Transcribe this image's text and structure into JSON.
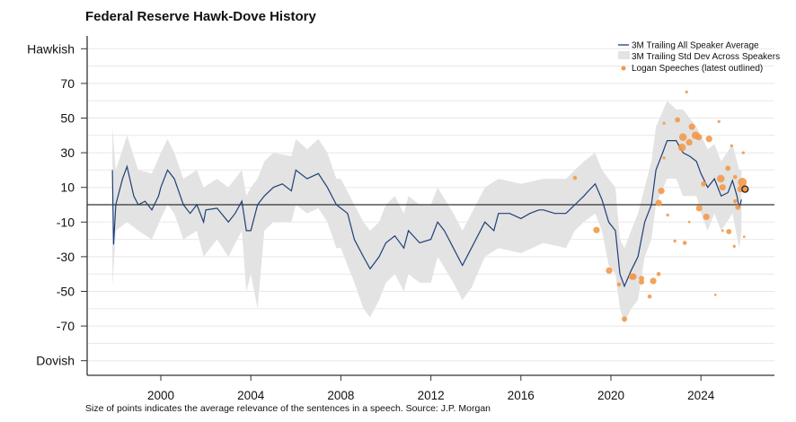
{
  "chart_data": {
    "type": "line",
    "title": "Federal Reserve Hawk-Dove History",
    "footnote": "Size of points indicates the average relevance of the sentences in a speech. Source: J.P. Morgan",
    "xlim": [
      1996.7,
      2027.3
    ],
    "ylim": [
      -95,
      100
    ],
    "x_ticks": [
      2000,
      2004,
      2008,
      2012,
      2016,
      2020,
      2024
    ],
    "y_ticks": [
      {
        "value": 90,
        "label": "Hawkish"
      },
      {
        "value": 70,
        "label": "70"
      },
      {
        "value": 50,
        "label": "50"
      },
      {
        "value": 30,
        "label": "30"
      },
      {
        "value": 10,
        "label": "10"
      },
      {
        "value": -10,
        "label": "-10"
      },
      {
        "value": -30,
        "label": "-30"
      },
      {
        "value": -50,
        "label": "-50"
      },
      {
        "value": -70,
        "label": "-70"
      },
      {
        "value": -90,
        "label": "Dovish"
      }
    ],
    "grid": true,
    "reference_line": 0,
    "legend_position": "top-right",
    "colors": {
      "average": "#1f3f77",
      "band": "#e3e3e3",
      "logan": "#f2994a",
      "zero_line": "#333333",
      "grid": "#e8e8e8"
    },
    "legend": [
      {
        "label": "3M Trailing All Speaker Average",
        "kind": "line"
      },
      {
        "label": "3M Trailing Std Dev Across Speakers",
        "kind": "band"
      },
      {
        "label": "Logan Speeches (latest outlined)",
        "kind": "dot"
      }
    ],
    "series": [
      {
        "name": "3M Trailing All Speaker Average",
        "points": [
          [
            1997.85,
            20
          ],
          [
            1997.9,
            -23
          ],
          [
            1998.0,
            0
          ],
          [
            1998.3,
            15
          ],
          [
            1998.5,
            22
          ],
          [
            1998.8,
            5
          ],
          [
            1999.0,
            0
          ],
          [
            1999.3,
            2
          ],
          [
            1999.6,
            -3
          ],
          [
            1999.9,
            5
          ],
          [
            2000.0,
            10
          ],
          [
            2000.3,
            20
          ],
          [
            2000.6,
            15
          ],
          [
            2001.0,
            0
          ],
          [
            2001.3,
            -5
          ],
          [
            2001.6,
            0
          ],
          [
            2001.9,
            -10
          ],
          [
            2002.0,
            -3
          ],
          [
            2002.5,
            -2
          ],
          [
            2003.0,
            -10
          ],
          [
            2003.3,
            -5
          ],
          [
            2003.6,
            2
          ],
          [
            2003.8,
            -15
          ],
          [
            2004.0,
            -15
          ],
          [
            2004.3,
            0
          ],
          [
            2004.6,
            5
          ],
          [
            2005.0,
            10
          ],
          [
            2005.4,
            12
          ],
          [
            2005.8,
            8
          ],
          [
            2006.0,
            20
          ],
          [
            2006.5,
            15
          ],
          [
            2007.0,
            18
          ],
          [
            2007.4,
            10
          ],
          [
            2007.8,
            0
          ],
          [
            2008.0,
            -2
          ],
          [
            2008.3,
            -5
          ],
          [
            2008.6,
            -20
          ],
          [
            2009.0,
            -30
          ],
          [
            2009.3,
            -37
          ],
          [
            2009.7,
            -30
          ],
          [
            2010.0,
            -22
          ],
          [
            2010.4,
            -18
          ],
          [
            2010.8,
            -25
          ],
          [
            2011.0,
            -15
          ],
          [
            2011.5,
            -22
          ],
          [
            2012.0,
            -20
          ],
          [
            2012.3,
            -10
          ],
          [
            2012.6,
            -15
          ],
          [
            2013.0,
            -25
          ],
          [
            2013.4,
            -35
          ],
          [
            2013.8,
            -25
          ],
          [
            2014.0,
            -20
          ],
          [
            2014.4,
            -10
          ],
          [
            2014.8,
            -15
          ],
          [
            2015.0,
            -5
          ],
          [
            2015.5,
            -5
          ],
          [
            2016.0,
            -8
          ],
          [
            2016.4,
            -5
          ],
          [
            2016.8,
            -3
          ],
          [
            2017.0,
            -3
          ],
          [
            2017.5,
            -5
          ],
          [
            2018.0,
            -5
          ],
          [
            2018.4,
            0
          ],
          [
            2018.8,
            5
          ],
          [
            2019.0,
            8
          ],
          [
            2019.3,
            12
          ],
          [
            2019.6,
            3
          ],
          [
            2019.9,
            -10
          ],
          [
            2020.2,
            -15
          ],
          [
            2020.4,
            -40
          ],
          [
            2020.6,
            -47
          ],
          [
            2020.9,
            -38
          ],
          [
            2021.2,
            -30
          ],
          [
            2021.5,
            -10
          ],
          [
            2021.8,
            0
          ],
          [
            2022.0,
            20
          ],
          [
            2022.3,
            30
          ],
          [
            2022.5,
            37
          ],
          [
            2022.9,
            37
          ],
          [
            2023.2,
            30
          ],
          [
            2023.5,
            28
          ],
          [
            2023.8,
            25
          ],
          [
            2024.0,
            18
          ],
          [
            2024.3,
            10
          ],
          [
            2024.6,
            15
          ],
          [
            2024.9,
            5
          ],
          [
            2025.2,
            7
          ],
          [
            2025.4,
            14
          ],
          [
            2025.6,
            5
          ],
          [
            2025.7,
            -2
          ],
          [
            2025.8,
            3
          ]
        ]
      },
      {
        "name": "3M Trailing Std Dev Across Speakers",
        "band": [
          [
            1997.85,
            -47,
            45
          ],
          [
            1998.0,
            -15,
            20
          ],
          [
            1998.5,
            -10,
            40
          ],
          [
            1999.0,
            -15,
            20
          ],
          [
            1999.6,
            -20,
            18
          ],
          [
            2000.0,
            -8,
            30
          ],
          [
            2000.3,
            0,
            38
          ],
          [
            2000.6,
            -5,
            30
          ],
          [
            2001.0,
            -20,
            15
          ],
          [
            2001.6,
            -15,
            20
          ],
          [
            2001.9,
            -30,
            10
          ],
          [
            2002.5,
            -20,
            15
          ],
          [
            2003.0,
            -30,
            10
          ],
          [
            2003.6,
            -15,
            20
          ],
          [
            2003.8,
            -50,
            5
          ],
          [
            2004.0,
            -40,
            10
          ],
          [
            2004.3,
            -60,
            15
          ],
          [
            2004.6,
            -15,
            25
          ],
          [
            2005.0,
            -10,
            30
          ],
          [
            2005.8,
            -10,
            28
          ],
          [
            2006.0,
            0,
            38
          ],
          [
            2006.5,
            -5,
            32
          ],
          [
            2007.0,
            -2,
            38
          ],
          [
            2007.4,
            -10,
            30
          ],
          [
            2007.8,
            -25,
            15
          ],
          [
            2008.0,
            -25,
            15
          ],
          [
            2008.6,
            -45,
            0
          ],
          [
            2009.0,
            -60,
            -10
          ],
          [
            2009.3,
            -65,
            -15
          ],
          [
            2009.7,
            -55,
            -10
          ],
          [
            2010.0,
            -45,
            0
          ],
          [
            2010.4,
            -40,
            5
          ],
          [
            2010.8,
            -50,
            -5
          ],
          [
            2011.0,
            -40,
            5
          ],
          [
            2011.5,
            -45,
            0
          ],
          [
            2012.0,
            -45,
            0
          ],
          [
            2012.3,
            -30,
            10
          ],
          [
            2013.0,
            -45,
            -5
          ],
          [
            2013.4,
            -55,
            -15
          ],
          [
            2013.8,
            -48,
            -5
          ],
          [
            2014.4,
            -30,
            10
          ],
          [
            2015.0,
            -25,
            15
          ],
          [
            2016.0,
            -28,
            12
          ],
          [
            2017.0,
            -22,
            15
          ],
          [
            2018.0,
            -25,
            15
          ],
          [
            2018.4,
            -15,
            20
          ],
          [
            2018.8,
            -10,
            25
          ],
          [
            2019.3,
            -5,
            30
          ],
          [
            2019.6,
            -15,
            20
          ],
          [
            2019.9,
            -35,
            15
          ],
          [
            2020.2,
            -40,
            10
          ],
          [
            2020.4,
            -60,
            -20
          ],
          [
            2020.6,
            -68,
            -25
          ],
          [
            2020.9,
            -60,
            -15
          ],
          [
            2021.2,
            -55,
            -5
          ],
          [
            2021.5,
            -30,
            10
          ],
          [
            2021.8,
            -20,
            25
          ],
          [
            2022.0,
            0,
            45
          ],
          [
            2022.5,
            15,
            60
          ],
          [
            2022.9,
            15,
            55
          ],
          [
            2023.2,
            5,
            55
          ],
          [
            2023.8,
            5,
            45
          ],
          [
            2024.0,
            -5,
            40
          ],
          [
            2024.3,
            -15,
            32
          ],
          [
            2024.6,
            -5,
            35
          ],
          [
            2024.9,
            -15,
            25
          ],
          [
            2025.4,
            -5,
            35
          ],
          [
            2025.7,
            -25,
            20
          ],
          [
            2025.8,
            -15,
            20
          ]
        ]
      }
    ],
    "logan_speeches": [
      [
        2018.4,
        15.5,
        1
      ],
      [
        2019.36,
        -14.6,
        2
      ],
      [
        2019.92,
        -38,
        2
      ],
      [
        2020.36,
        -46,
        1
      ],
      [
        2020.6,
        -66,
        1.5
      ],
      [
        2020.94,
        -41.5,
        2
      ],
      [
        2021.0,
        -41.5,
        2
      ],
      [
        2021.36,
        -42.5,
        1.5
      ],
      [
        2021.36,
        -44.6,
        1.5
      ],
      [
        2021.72,
        -53,
        1
      ],
      [
        2021.88,
        -44,
        2
      ],
      [
        2022.12,
        -40,
        1
      ],
      [
        2022.12,
        1,
        2
      ],
      [
        2022.24,
        8,
        2
      ],
      [
        2022.36,
        27,
        0.5
      ],
      [
        2022.36,
        47,
        0.5
      ],
      [
        2022.52,
        -6,
        0.5
      ],
      [
        2022.84,
        -21,
        0.5
      ],
      [
        2022.96,
        49,
        1.5
      ],
      [
        2023.16,
        33,
        2.5
      ],
      [
        2023.2,
        39,
        2.5
      ],
      [
        2023.28,
        -22,
        1
      ],
      [
        2023.36,
        65,
        0.5
      ],
      [
        2023.48,
        36,
        2
      ],
      [
        2023.48,
        -10,
        0.3
      ],
      [
        2023.6,
        45,
        2
      ],
      [
        2023.76,
        40,
        2.5
      ],
      [
        2023.9,
        39,
        2
      ],
      [
        2023.92,
        -2,
        2
      ],
      [
        2024.12,
        12,
        1.5
      ],
      [
        2024.24,
        -7,
        2
      ],
      [
        2024.36,
        38,
        2
      ],
      [
        2024.64,
        -52,
        0.3
      ],
      [
        2024.8,
        48,
        0.5
      ],
      [
        2024.88,
        15,
        2.5
      ],
      [
        2024.96,
        10,
        2
      ],
      [
        2024.96,
        -15,
        0.3
      ],
      [
        2025.2,
        21,
        1.5
      ],
      [
        2025.24,
        -15.5,
        1.5
      ],
      [
        2025.36,
        34,
        0.5
      ],
      [
        2025.48,
        -24,
        0.5
      ],
      [
        2025.52,
        16,
        1
      ],
      [
        2025.52,
        2,
        1
      ],
      [
        2025.64,
        -1.5,
        1.5
      ],
      [
        2025.76,
        9,
        2
      ],
      [
        2025.84,
        13,
        3
      ],
      [
        2025.88,
        30,
        0.5
      ],
      [
        2025.92,
        -18.5,
        0.3
      ]
    ],
    "latest_logan_speech": [
      2025.96,
      9
    ]
  }
}
